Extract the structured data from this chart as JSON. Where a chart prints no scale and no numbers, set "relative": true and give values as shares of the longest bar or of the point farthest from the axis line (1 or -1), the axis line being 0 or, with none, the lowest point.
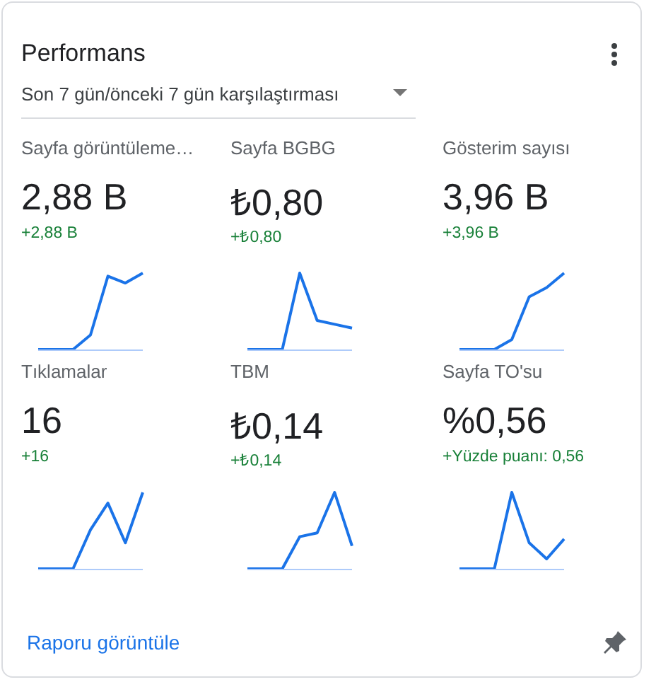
{
  "chart_data": [
    {
      "type": "other",
      "title": "Performans",
      "subtitle": "Son 7 gün/önceki 7 gün karşılaştırması",
      "annotations": [
        "Raporu görüntüle"
      ]
    },
    {
      "type": "line",
      "title": "Sayfa görüntüleme…",
      "subtitle": "2,88 B",
      "annotations": [
        "+2,88 B"
      ],
      "relative": true,
      "marker": "none",
      "color": "#1a73e8",
      "categories": [
        null,
        null,
        null,
        null,
        null,
        null,
        null
      ],
      "values": [
        0,
        0,
        0,
        0.19,
        0.96,
        0.87,
        1
      ]
    },
    {
      "type": "line",
      "title": "Sayfa BGBG",
      "subtitle": "₺0,80",
      "annotations": [
        "+₺0,80"
      ],
      "relative": true,
      "marker": "none",
      "color": "#1a73e8",
      "categories": [
        null,
        null,
        null,
        null,
        null,
        null,
        null
      ],
      "values": [
        0,
        0,
        0,
        1,
        0.38,
        0.33,
        0.28
      ]
    },
    {
      "type": "line",
      "title": "Gösterim sayısı",
      "subtitle": "3,96 B",
      "annotations": [
        "+3,96 B"
      ],
      "relative": true,
      "marker": "none",
      "color": "#1a73e8",
      "categories": [
        null,
        null,
        null,
        null,
        null,
        null,
        null
      ],
      "values": [
        0,
        0,
        0,
        0.13,
        0.69,
        0.81,
        1
      ]
    },
    {
      "type": "line",
      "title": "Tıklamalar",
      "subtitle": "16",
      "annotations": [
        "+16"
      ],
      "relative": true,
      "marker": "none",
      "color": "#1a73e8",
      "categories": [
        null,
        null,
        null,
        null,
        null,
        null,
        null
      ],
      "values": [
        0,
        0,
        0,
        0.51,
        0.86,
        0.34,
        1
      ]
    },
    {
      "type": "line",
      "title": "TBM",
      "subtitle": "₺0,14",
      "annotations": [
        "+₺0,14"
      ],
      "relative": true,
      "marker": "none",
      "color": "#1a73e8",
      "categories": [
        null,
        null,
        null,
        null,
        null,
        null,
        null
      ],
      "values": [
        0,
        0,
        0,
        0.42,
        0.47,
        1,
        0.3
      ]
    },
    {
      "type": "line",
      "title": "Sayfa TO'su",
      "subtitle": "%0,56",
      "annotations": [
        "+Yüzde puanı: 0,56"
      ],
      "relative": true,
      "marker": "none",
      "color": "#1a73e8",
      "categories": [
        null,
        null,
        null,
        null,
        null,
        null,
        null
      ],
      "values": [
        0,
        0,
        0,
        1,
        0.34,
        0.13,
        0.39
      ]
    }
  ]
}
